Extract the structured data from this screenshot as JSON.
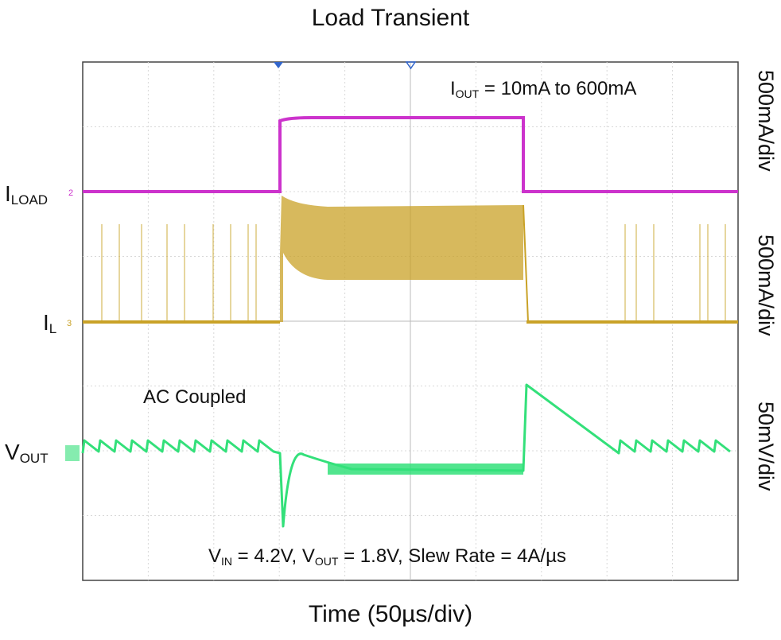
{
  "chart_data": {
    "type": "line",
    "title": "Load Transient",
    "xlabel": "Time (50µs/div)",
    "ylabel": "",
    "grid": true,
    "x_divisions": 10,
    "y_divisions": 8,
    "channels": [
      {
        "name": "I_LOAD",
        "label_main": "I",
        "label_sub": "LOAD",
        "scale": "500mA/div",
        "color": "#cc33cc",
        "level_low_mA": 10,
        "level_high_mA": 600,
        "step_up_time_us": 0,
        "step_down_time_us": 153
      },
      {
        "name": "I_L",
        "label_main": "I",
        "label_sub": "L",
        "scale": "500mA/div",
        "color": "#c9a227",
        "behavior": "pulsed at light load, continuous switching ripple at 600mA"
      },
      {
        "name": "V_OUT",
        "label_main": "V",
        "label_sub": "OUT",
        "scale": "50mV/div",
        "color": "#33e07a",
        "coupling": "AC Coupled",
        "behavior": "sawtooth ripple at light load, undershoot on load step up, overshoot on load step down"
      }
    ],
    "annotations": {
      "iout_main": "I",
      "iout_sub": "OUT",
      "iout_value": " = 10mA to 600mA",
      "ac_coupled": "AC Coupled",
      "vin_main": "V",
      "vin_sub": "IN",
      "vin_value": " = 4.2V, ",
      "vout_main": "V",
      "vout_sub": "OUT",
      "vout_value": " = 1.8V, Slew Rate = 4A/µs"
    }
  }
}
